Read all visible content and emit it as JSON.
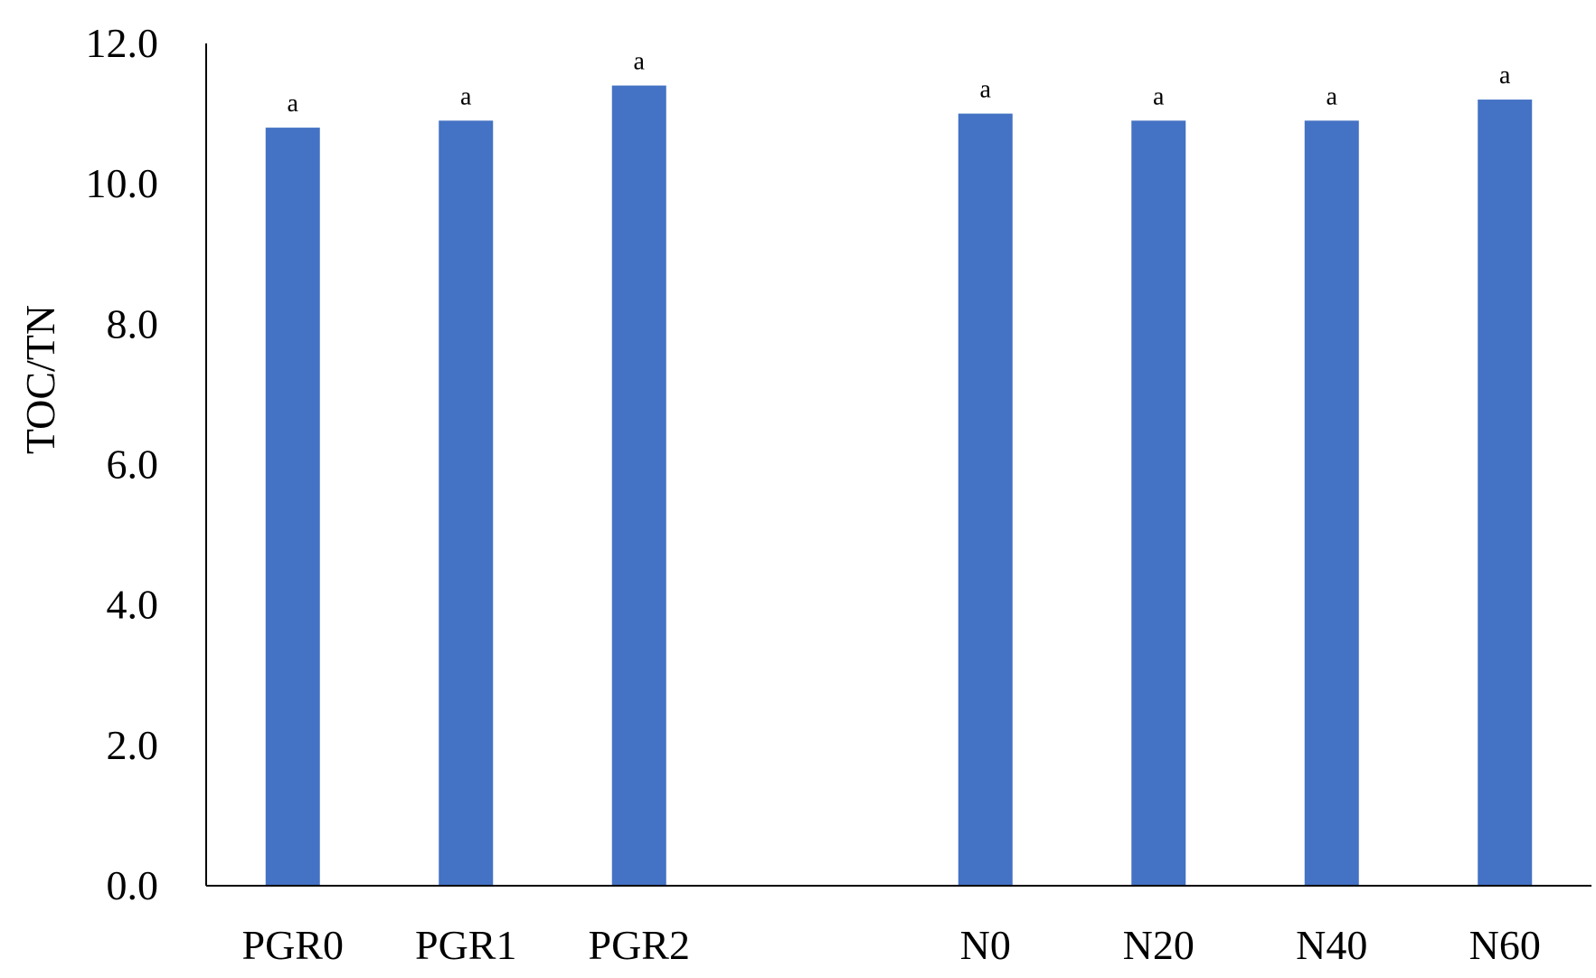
{
  "chart_data": {
    "type": "bar",
    "title": "",
    "xlabel": "",
    "ylabel": "TOC/TN",
    "ylim": [
      0,
      12
    ],
    "yticks": [
      "0.0",
      "2.0",
      "4.0",
      "6.0",
      "8.0",
      "10.0",
      "12.0"
    ],
    "grid": false,
    "legend": "none",
    "bar_color": "#4472C4",
    "categories": [
      "PGR0",
      "PGR1",
      "PGR2",
      "",
      "N0",
      "N20",
      "N40",
      "N60"
    ],
    "values": [
      10.8,
      10.9,
      11.4,
      null,
      11.0,
      10.9,
      10.9,
      11.2
    ],
    "data_labels": [
      "a",
      "a",
      "a",
      "",
      "a",
      "a",
      "a",
      "a"
    ]
  }
}
